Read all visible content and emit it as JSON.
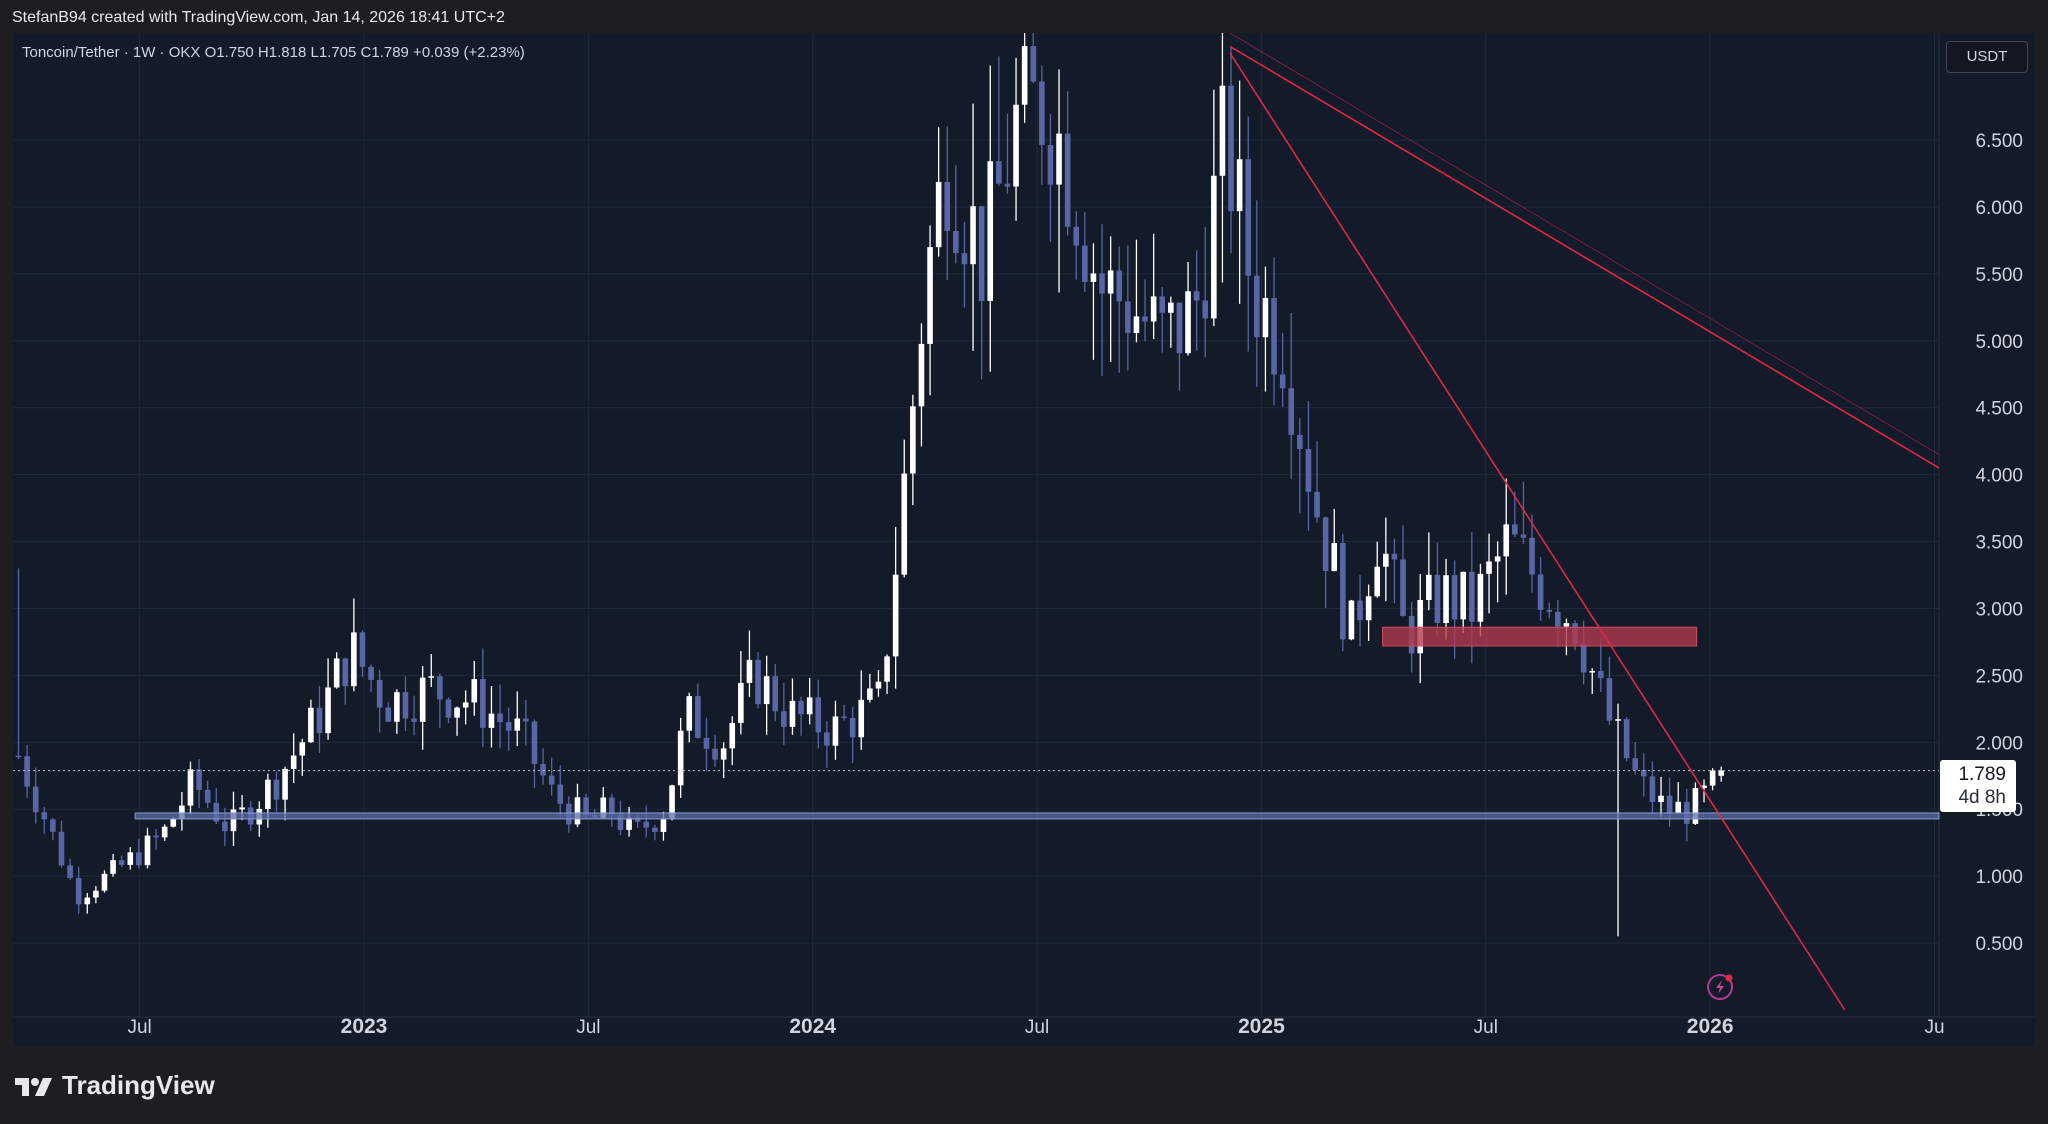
{
  "attribution": "StefanB94 created with TradingView.com, Jan 14, 2026 18:41 UTC+2",
  "legend": "Toncoin/Tether · 1W · OKX   O1.750   H1.818   L1.705   C1.789   +0.039 (+2.23%)",
  "currency": "USDT",
  "last_price": "1.789",
  "countdown": "4d 8h",
  "brand": "TradingView",
  "colors": {
    "background": "#131a28",
    "up": "#ffffff",
    "down": "#5866a6",
    "trendline": "#e0284a",
    "resistance_zone": "#b23a4e",
    "support_line": "#5b6fa8",
    "grid": "#1f2a3b"
  },
  "icons": {
    "brand_logo": "tradingview-logo-icon",
    "alert": "lightning-alert-icon"
  },
  "chart_data": {
    "type": "candlestick",
    "title": "Toncoin/Tether · 1W · OKX",
    "ohlc_last": {
      "open": 1.75,
      "high": 1.818,
      "low": 1.705,
      "close": 1.789,
      "change": 0.039,
      "change_pct": 2.23
    },
    "y_ticks": [
      "0.500",
      "1.000",
      "1.500",
      "2.000",
      "2.500",
      "3.000",
      "3.500",
      "4.000",
      "4.500",
      "5.000",
      "5.500",
      "6.000",
      "6.500"
    ],
    "x_ticks": [
      {
        "label": "Jul",
        "t": 2022.5,
        "bold": false
      },
      {
        "label": "2023",
        "t": 2023.0,
        "bold": true
      },
      {
        "label": "Jul",
        "t": 2023.5,
        "bold": false
      },
      {
        "label": "2024",
        "t": 2024.0,
        "bold": true
      },
      {
        "label": "Jul",
        "t": 2024.5,
        "bold": false
      },
      {
        "label": "2025",
        "t": 2025.0,
        "bold": true
      },
      {
        "label": "Jul",
        "t": 2025.5,
        "bold": false
      },
      {
        "label": "2026",
        "t": 2026.0,
        "bold": true
      },
      {
        "label": "Ju",
        "t": 2026.5,
        "bold": false
      }
    ],
    "y_range": [
      0.0,
      7.3
    ],
    "x_range": [
      2022.22,
      2026.51
    ],
    "grid": true,
    "anchors": [
      [
        2022.23,
        1.9
      ],
      [
        2022.3,
        1.35
      ],
      [
        2022.36,
        0.85
      ],
      [
        2022.45,
        1.05
      ],
      [
        2022.55,
        1.3
      ],
      [
        2022.62,
        1.7
      ],
      [
        2022.7,
        1.35
      ],
      [
        2022.8,
        1.7
      ],
      [
        2022.9,
        2.2
      ],
      [
        2022.97,
        2.7
      ],
      [
        2023.05,
        2.3
      ],
      [
        2023.15,
        2.4
      ],
      [
        2023.25,
        2.3
      ],
      [
        2023.35,
        2.05
      ],
      [
        2023.42,
        1.6
      ],
      [
        2023.5,
        1.4
      ],
      [
        2023.55,
        1.5
      ],
      [
        2023.6,
        1.3
      ],
      [
        2023.67,
        1.5
      ],
      [
        2023.72,
        2.2
      ],
      [
        2023.8,
        2.0
      ],
      [
        2023.87,
        2.5
      ],
      [
        2023.95,
        2.2
      ],
      [
        2024.05,
        2.1
      ],
      [
        2024.15,
        2.3
      ],
      [
        2024.2,
        3.8
      ],
      [
        2024.25,
        5.4
      ],
      [
        2024.3,
        6.4
      ],
      [
        2024.38,
        5.6
      ],
      [
        2024.45,
        6.6
      ],
      [
        2024.52,
        6.8
      ],
      [
        2024.58,
        6.2
      ],
      [
        2024.64,
        5.4
      ],
      [
        2024.7,
        5.3
      ],
      [
        2024.78,
        5.0
      ],
      [
        2024.85,
        5.2
      ],
      [
        2024.92,
        6.5
      ],
      [
        2024.98,
        5.4
      ],
      [
        2025.05,
        5.0
      ],
      [
        2025.12,
        3.8
      ],
      [
        2025.2,
        2.8
      ],
      [
        2025.26,
        3.6
      ],
      [
        2025.32,
        2.8
      ],
      [
        2025.4,
        3.1
      ],
      [
        2025.47,
        3.0
      ],
      [
        2025.55,
        3.5
      ],
      [
        2025.62,
        3.2
      ],
      [
        2025.7,
        2.9
      ],
      [
        2025.77,
        2.2
      ],
      [
        2025.84,
        1.7
      ],
      [
        2025.9,
        1.5
      ],
      [
        2025.96,
        1.5
      ],
      [
        2026.04,
        1.789
      ]
    ],
    "extra_wicks": [
      {
        "t": 2025.79,
        "low": 0.55
      },
      {
        "t": 2022.23,
        "high": 3.3
      }
    ],
    "support_line": {
      "price": 1.45,
      "t_start": 2022.49,
      "t_end": 2026.51
    },
    "resistance_zone": {
      "price_low": 2.72,
      "price_high": 2.86,
      "t_start": 2025.27,
      "t_end": 2025.97
    },
    "trendlines": [
      {
        "from": [
          2024.93,
          7.15
        ],
        "to": [
          2026.3,
          0.0
        ]
      },
      {
        "from": [
          2024.93,
          7.2
        ],
        "to": [
          2026.51,
          4.05
        ]
      },
      {
        "from": [
          2024.93,
          7.3
        ],
        "to": [
          2026.51,
          4.15
        ]
      }
    ]
  }
}
